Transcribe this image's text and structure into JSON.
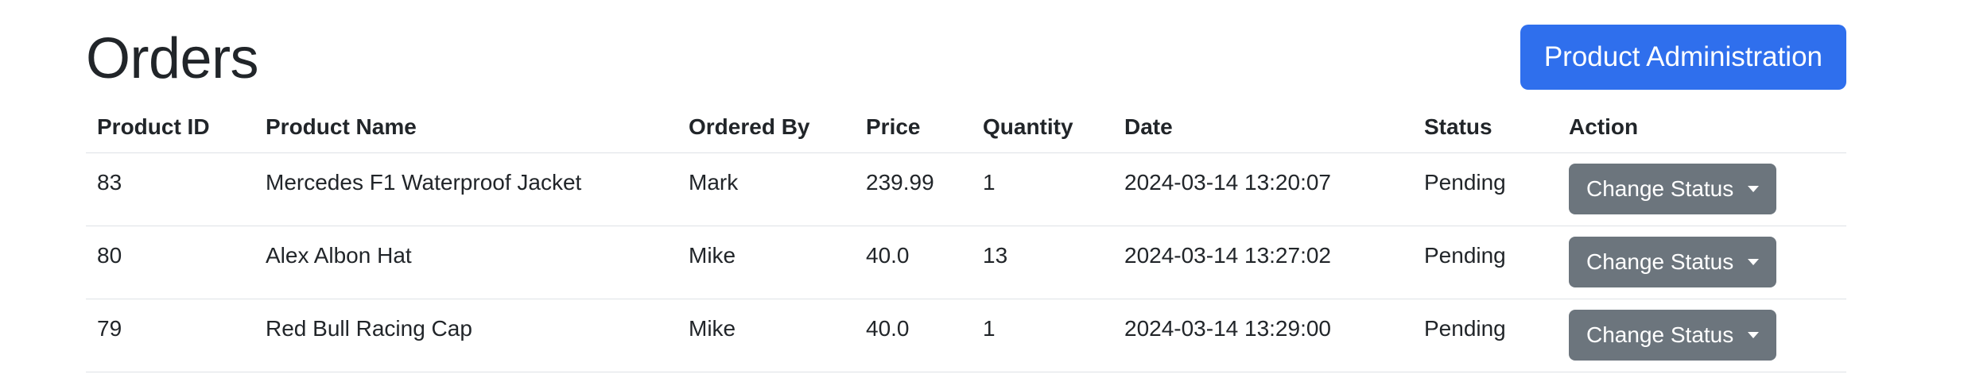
{
  "page": {
    "title": "Orders",
    "admin_button_label": "Product Administration"
  },
  "table": {
    "headers": [
      "Product ID",
      "Product Name",
      "Ordered By",
      "Price",
      "Quantity",
      "Date",
      "Status",
      "Action"
    ],
    "rows": [
      {
        "product_id": "83",
        "product_name": "Mercedes F1 Waterproof Jacket",
        "ordered_by": "Mark",
        "price": "239.99",
        "quantity": "1",
        "date": "2024-03-14 13:20:07",
        "status": "Pending",
        "action_label": "Change Status"
      },
      {
        "product_id": "80",
        "product_name": "Alex Albon Hat",
        "ordered_by": "Mike",
        "price": "40.0",
        "quantity": "13",
        "date": "2024-03-14 13:27:02",
        "status": "Pending",
        "action_label": "Change Status"
      },
      {
        "product_id": "79",
        "product_name": "Red Bull Racing Cap",
        "ordered_by": "Mike",
        "price": "40.0",
        "quantity": "1",
        "date": "2024-03-14 13:29:00",
        "status": "Pending",
        "action_label": "Change Status"
      }
    ]
  },
  "colors": {
    "primary_button": "#2f6fed",
    "secondary_button": "#6c757d",
    "divider": "#dee2e6"
  },
  "icons": {
    "dropdown_caret": "caret-down-icon"
  }
}
